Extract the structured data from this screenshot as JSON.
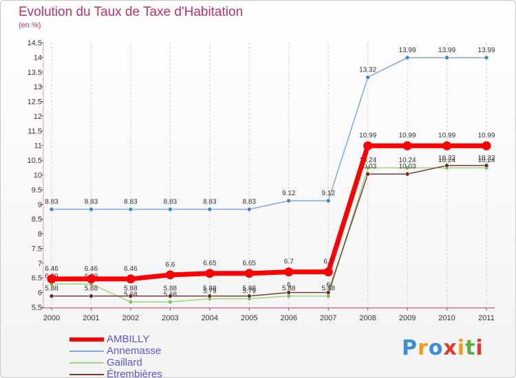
{
  "header": {
    "title": "Evolution du Taux de Taxe d'Habitation",
    "unit": "(en %)"
  },
  "logo": {
    "text": "Proxiti",
    "colors": [
      "#3a8fd6",
      "#f39a1e",
      "#3a8fd6",
      "#e23a2a",
      "#f39a1e",
      "#5cae3c",
      "#e23a2a"
    ]
  },
  "chart_data": {
    "type": "line",
    "x": [
      "2000",
      "2001",
      "2002",
      "2003",
      "2004",
      "2005",
      "2006",
      "2007",
      "2008",
      "2009",
      "2010",
      "2011"
    ],
    "ylim": [
      5.5,
      14.5
    ],
    "yticks": [
      "5.5",
      "6",
      "6.5",
      "7",
      "7.5",
      "8",
      "8.5",
      "9",
      "9.5",
      "10",
      "10.5",
      "11",
      "11.5",
      "12",
      "12.5",
      "13",
      "13.5",
      "14",
      "14.5"
    ],
    "grid": "vertical dashed",
    "legend_position": "bottom-left",
    "series": [
      {
        "name": "Annemasse",
        "color": "#7fa9d9",
        "marker": "#3f86c5",
        "values": [
          8.83,
          8.83,
          8.83,
          8.83,
          8.83,
          8.83,
          9.12,
          9.12,
          13.32,
          13.99,
          13.99,
          13.99
        ],
        "labels": [
          "8.83",
          "8.83",
          "8.83",
          "8.83",
          "8.83",
          "8.83",
          "9.12",
          "9.12",
          "13.32",
          "13.99",
          "13.99",
          "13.99"
        ]
      },
      {
        "name": "Gaillard",
        "color": "#9ed77a",
        "marker": "#7cc34e",
        "values": [
          6.29,
          6.29,
          5.68,
          5.68,
          5.79,
          5.79,
          5.88,
          5.88,
          10.24,
          10.24,
          10.24,
          10.24
        ],
        "labels": [
          "6.29",
          "6.29",
          "5.68",
          "5.68",
          "5.79",
          "5.79",
          "5.88",
          "5.88",
          "10.24",
          "10.24",
          "10.24",
          "10.24"
        ]
      },
      {
        "name": "Étrembières",
        "color": "#7a3a3a",
        "marker": "#6b2a2a",
        "values": [
          5.88,
          5.88,
          5.88,
          5.88,
          5.88,
          5.88,
          6.0,
          6.0,
          10.03,
          10.03,
          10.32,
          10.32
        ],
        "labels": [
          "5.88",
          "5.88",
          "5.88",
          "5.88",
          "5.88",
          "5.88",
          "6",
          "6",
          "10.03",
          "10.03",
          "10.32",
          "10.32"
        ]
      },
      {
        "name": "AMBILLY",
        "color": "#ff0000",
        "marker": "#ff0000",
        "values": [
          6.46,
          6.46,
          6.46,
          6.6,
          6.65,
          6.65,
          6.7,
          6.7,
          10.99,
          10.99,
          10.99,
          10.99
        ],
        "labels": [
          "6.46",
          "6.46",
          "6.46",
          "6.6",
          "6.65",
          "6.65",
          "6.7",
          "6.7",
          "10.99",
          "10.99",
          "10.99",
          "10.99"
        ]
      }
    ]
  },
  "legend": [
    {
      "name": "AMBILLY",
      "color": "#ff0000",
      "thickness": 6
    },
    {
      "name": "Annemasse",
      "color": "#7fa9d9",
      "thickness": 2
    },
    {
      "name": "Gaillard",
      "color": "#9ed77a",
      "thickness": 2
    },
    {
      "name": "Étrembières",
      "color": "#7a3a3a",
      "thickness": 2
    }
  ]
}
